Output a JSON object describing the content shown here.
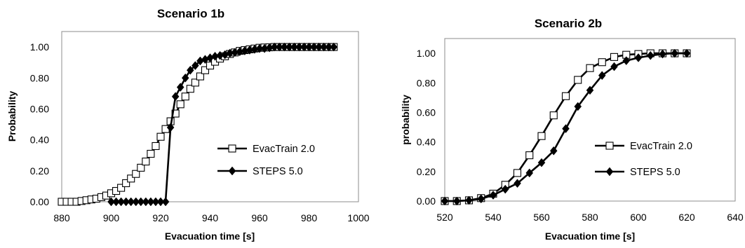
{
  "chart_data": [
    {
      "type": "line",
      "title": "Scenario 1b",
      "xlabel": "Evacuation time [s]",
      "ylabel": "Probability",
      "xlim": [
        880,
        1000
      ],
      "ylim": [
        0,
        1.1
      ],
      "xticks": [
        "880",
        "900",
        "920",
        "940",
        "960",
        "980",
        "1000"
      ],
      "yticks": [
        "0.00",
        "0.20",
        "0.40",
        "0.60",
        "0.80",
        "1.00"
      ],
      "grid": false,
      "legend_position": "right",
      "series": [
        {
          "name": "EvacTrain 2.0",
          "marker": "open-square",
          "x": [
            880,
            882,
            884,
            886,
            888,
            890,
            892,
            894,
            896,
            898,
            900,
            902,
            904,
            906,
            908,
            910,
            912,
            914,
            916,
            918,
            920,
            922,
            924,
            926,
            928,
            930,
            932,
            934,
            936,
            938,
            940,
            942,
            944,
            946,
            948,
            950,
            952,
            954,
            956,
            958,
            960,
            962,
            964,
            966,
            968,
            970,
            972,
            974,
            976,
            978,
            980,
            982,
            984,
            986,
            988,
            990
          ],
          "y": [
            0.0,
            0.0,
            0.0,
            0.0,
            0.005,
            0.01,
            0.015,
            0.02,
            0.03,
            0.04,
            0.055,
            0.07,
            0.09,
            0.12,
            0.15,
            0.18,
            0.22,
            0.26,
            0.31,
            0.36,
            0.42,
            0.47,
            0.52,
            0.57,
            0.63,
            0.68,
            0.73,
            0.77,
            0.81,
            0.85,
            0.88,
            0.905,
            0.925,
            0.94,
            0.955,
            0.965,
            0.975,
            0.98,
            0.985,
            0.99,
            0.995,
            0.997,
            0.998,
            1.0,
            1.0,
            1.0,
            1.0,
            1.0,
            1.0,
            1.0,
            1.0,
            1.0,
            1.0,
            1.0,
            1.0,
            1.0
          ]
        },
        {
          "name": "STEPS 5.0",
          "marker": "filled-diamond",
          "x": [
            900,
            902,
            904,
            906,
            908,
            910,
            912,
            914,
            916,
            918,
            920,
            922,
            924,
            926,
            928,
            930,
            932,
            934,
            936,
            938,
            940,
            942,
            944,
            946,
            948,
            950,
            952,
            954,
            956,
            958,
            960,
            962,
            964,
            966,
            968,
            970,
            972,
            974,
            976,
            978,
            980,
            982,
            984,
            986,
            988,
            990
          ],
          "y": [
            0.0,
            0.0,
            0.0,
            0.0,
            0.0,
            0.0,
            0.0,
            0.0,
            0.0,
            0.0,
            0.0,
            0.0,
            0.48,
            0.68,
            0.74,
            0.8,
            0.85,
            0.88,
            0.91,
            0.92,
            0.93,
            0.94,
            0.945,
            0.95,
            0.96,
            0.965,
            0.97,
            0.975,
            0.98,
            0.985,
            0.99,
            0.99,
            0.995,
            1.0,
            1.0,
            1.0,
            1.0,
            1.0,
            1.0,
            1.0,
            1.0,
            1.0,
            1.0,
            1.0,
            1.0,
            1.0
          ]
        }
      ]
    },
    {
      "type": "line",
      "title": "Scenario 2b",
      "xlabel": "Evacuation time [s]",
      "ylabel": "probability",
      "xlim": [
        520,
        640
      ],
      "ylim": [
        0,
        1.1
      ],
      "xticks": [
        "520",
        "540",
        "560",
        "580",
        "600",
        "620",
        "640"
      ],
      "yticks": [
        "0.00",
        "0.20",
        "0.40",
        "0.60",
        "0.80",
        "1.00"
      ],
      "grid": false,
      "legend_position": "right",
      "series": [
        {
          "name": "EvacTrain 2.0",
          "marker": "open-square",
          "x": [
            520,
            525,
            530,
            535,
            540,
            545,
            550,
            555,
            560,
            565,
            570,
            575,
            580,
            585,
            590,
            595,
            600,
            605,
            610,
            615,
            620
          ],
          "y": [
            0.0,
            0.0,
            0.005,
            0.02,
            0.05,
            0.11,
            0.19,
            0.31,
            0.44,
            0.58,
            0.71,
            0.82,
            0.9,
            0.94,
            0.975,
            0.99,
            0.995,
            1.0,
            1.0,
            1.0,
            1.0
          ]
        },
        {
          "name": "STEPS 5.0",
          "marker": "filled-diamond",
          "x": [
            520,
            525,
            530,
            535,
            540,
            545,
            550,
            555,
            560,
            565,
            570,
            575,
            580,
            585,
            590,
            595,
            600,
            605,
            610,
            615,
            620
          ],
          "y": [
            0.0,
            0.0,
            0.005,
            0.015,
            0.04,
            0.08,
            0.12,
            0.19,
            0.26,
            0.34,
            0.49,
            0.64,
            0.75,
            0.85,
            0.91,
            0.95,
            0.97,
            0.985,
            0.995,
            1.0,
            1.0
          ]
        }
      ]
    }
  ]
}
